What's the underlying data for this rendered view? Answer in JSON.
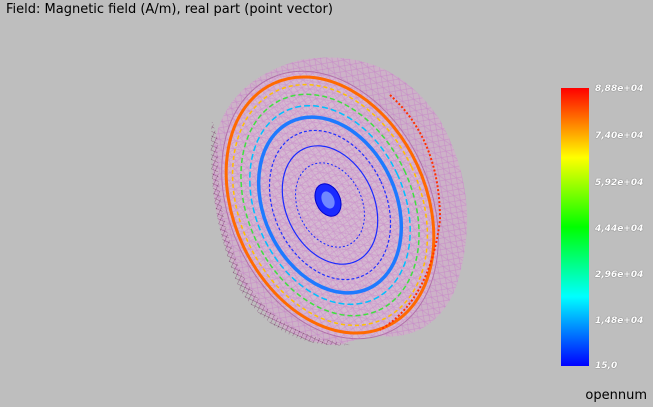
{
  "viewport": {
    "title": "Field: Magnetic field (A/m), real part (point vector)",
    "brand": "opennum"
  },
  "colorbar": {
    "ticks": [
      "8,88e+04",
      "7,40e+04",
      "5,92e+04",
      "4,44e+04",
      "2,96e+04",
      "1,48e+04",
      "15,0"
    ],
    "colors": [
      "#ff0000",
      "#ffff00",
      "#00ff00",
      "#00ffff",
      "#0000ff"
    ]
  },
  "colors": {
    "background": "#bebebe",
    "mesh": "#c88cc8",
    "mesh_dark": "#8a4a7a",
    "field_blue": "#1a2aff",
    "field_orange": "#ff8a1a"
  }
}
